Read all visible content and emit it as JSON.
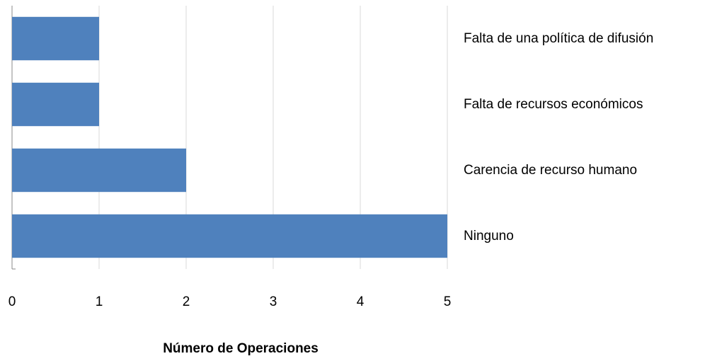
{
  "chart_data": {
    "type": "hbar",
    "categories": [
      "Falta de una política de difusión",
      "Falta de recursos económicos",
      "Carencia de recurso humano",
      "Ninguno"
    ],
    "values": [
      1,
      1,
      2,
      5
    ],
    "color": "#4f81bd",
    "xlim": [
      0,
      5
    ],
    "xticks": [
      0,
      1,
      2,
      3,
      4,
      5
    ],
    "xlabel": "Número de Operaciones",
    "grid": true
  }
}
